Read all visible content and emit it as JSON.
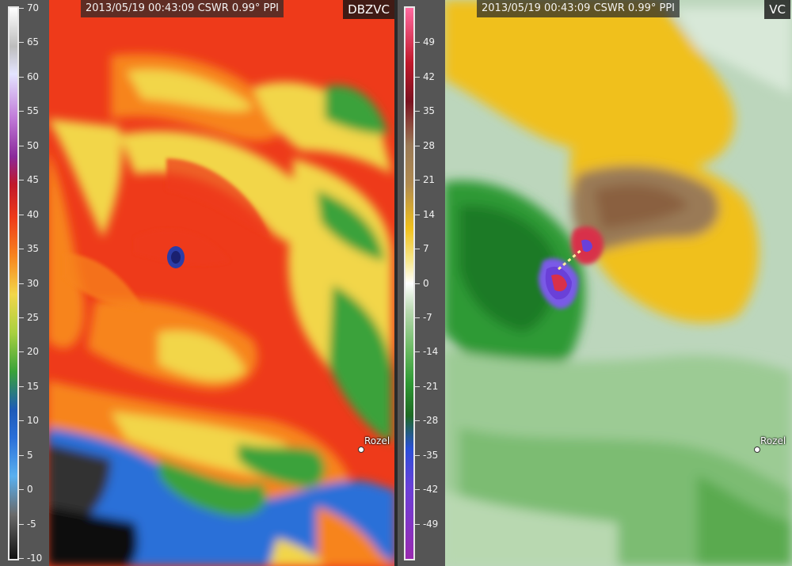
{
  "left_panel": {
    "header": "2013/05/19 00:43:09 CSWR 0.99° PPI",
    "product": "DBZVC",
    "city": "Rozel",
    "colorbar": {
      "ticks": [
        "70",
        "65",
        "60",
        "55",
        "50",
        "45",
        "40",
        "35",
        "30",
        "25",
        "20",
        "15",
        "10",
        "5",
        "0",
        "-5",
        "-10"
      ],
      "min": -10,
      "max": 70
    }
  },
  "right_panel": {
    "header": "2013/05/19 00:43:09 CSWR 0.99° PPI",
    "product": "VC",
    "city": "Rozel",
    "colorbar": {
      "ticks": [
        "49",
        "42",
        "35",
        "28",
        "21",
        "14",
        "7",
        "0",
        "-7",
        "-14",
        "-21",
        "-28",
        "-35",
        "-42",
        "-49"
      ],
      "min": -56,
      "max": 56
    }
  },
  "colors": {
    "refl_red": "#ee3a1a",
    "refl_orange": "#f7841f",
    "refl_yellow": "#f2d64a",
    "refl_green": "#3aa23a",
    "refl_blue": "#2a6fd8",
    "vel_green": "#2f9a34",
    "vel_light": "#c8dcc8",
    "vel_yellow": "#f0c01c",
    "vel_brown": "#9a7a56",
    "vel_purple": "#6a40d8",
    "vel_red": "#d8304a"
  }
}
